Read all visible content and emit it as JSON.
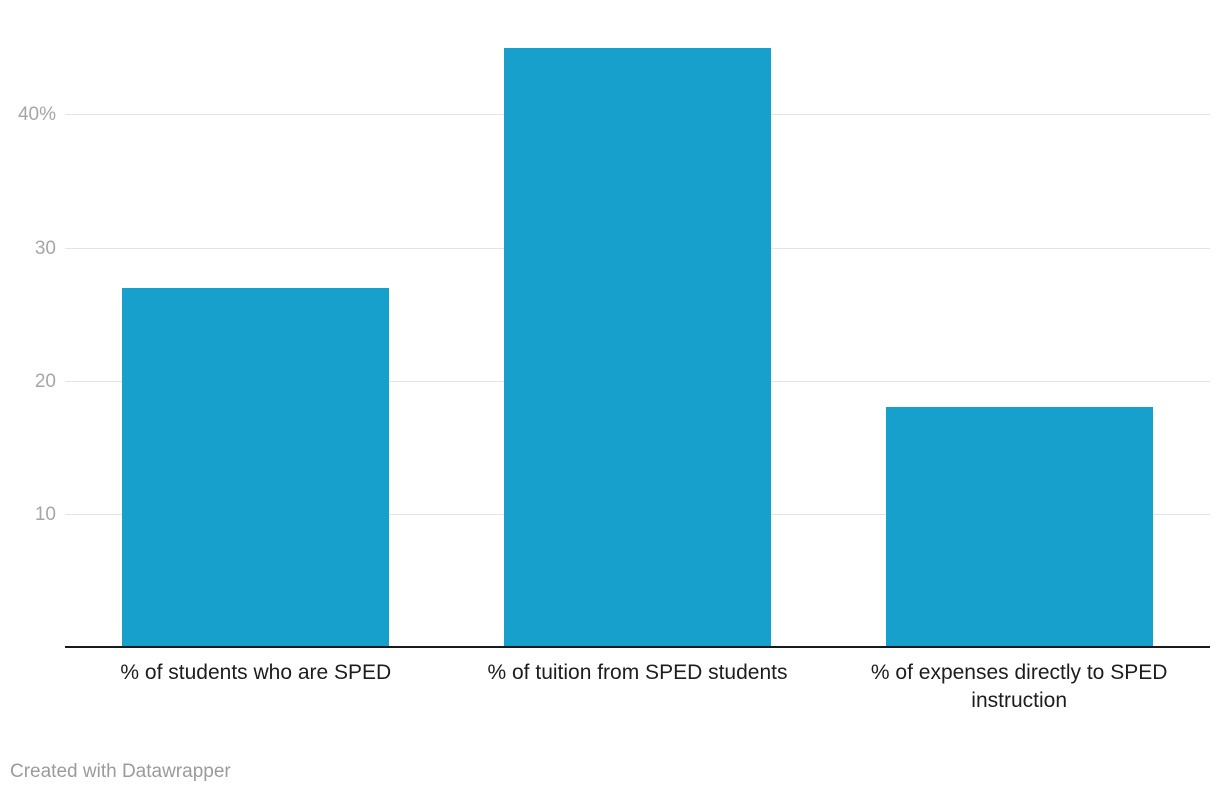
{
  "chart_data": {
    "type": "bar",
    "categories": [
      "% of students who are SPED",
      "% of tuition from SPED students",
      "% of expenses directly to SPED instruction"
    ],
    "values": [
      27,
      45,
      18
    ],
    "title": "",
    "xlabel": "",
    "ylabel": "",
    "ylim": [
      0,
      48.6
    ],
    "yticks": [
      10,
      20,
      30,
      40
    ],
    "ytick_labels": [
      "10",
      "20",
      "30",
      "40%"
    ],
    "grid": true,
    "legend": false,
    "bar_color": "#18a0cc"
  },
  "colors": {
    "bar": "#18a0cc",
    "gridline": "#e4e4e4",
    "axis_line": "#1a1a1a",
    "tick_label": "#a6a6a6",
    "category_label": "#1d1d1d",
    "footer_text": "#9b9b9b",
    "background": "#ffffff"
  },
  "footer": {
    "credit": "Created with Datawrapper"
  }
}
